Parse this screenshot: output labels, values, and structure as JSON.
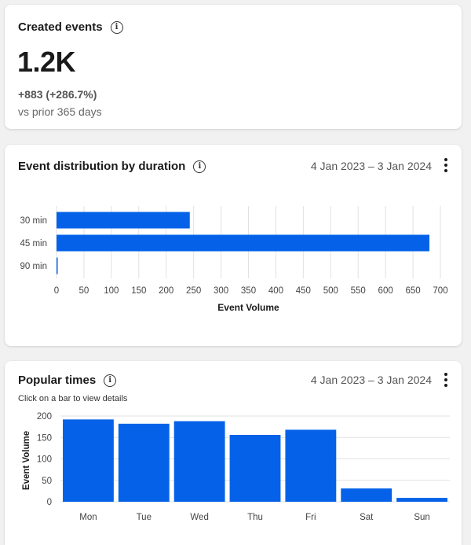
{
  "created": {
    "title": "Created events",
    "value": "1.2K",
    "change": "+883 (+286.7%)",
    "comparison": "vs prior 365 days"
  },
  "duration": {
    "title": "Event distribution by duration",
    "date_range": "4 Jan 2023 – 3 Jan 2024"
  },
  "popular": {
    "title": "Popular times",
    "date_range": "4 Jan 2023 – 3 Jan 2024",
    "subtitle": "Click on a bar to view details"
  },
  "chart_data": [
    {
      "type": "bar",
      "orientation": "horizontal",
      "categories": [
        "30 min",
        "45 min",
        "90 min"
      ],
      "values": [
        243,
        680,
        1
      ],
      "xlabel": "Event Volume",
      "ylabel": "",
      "xlim": [
        0,
        700
      ],
      "xticks": [
        0,
        50,
        100,
        150,
        200,
        250,
        300,
        350,
        400,
        450,
        500,
        550,
        600,
        650,
        700
      ],
      "grid": true,
      "color": "#0562e8"
    },
    {
      "type": "bar",
      "orientation": "vertical",
      "categories": [
        "Mon",
        "Tue",
        "Wed",
        "Thu",
        "Fri",
        "Sat",
        "Sun"
      ],
      "values": [
        192,
        182,
        188,
        156,
        168,
        31,
        9
      ],
      "xlabel": "",
      "ylabel": "Event Volume",
      "ylim": [
        0,
        200
      ],
      "yticks": [
        0,
        50,
        100,
        150,
        200
      ],
      "grid": true,
      "color": "#0562e8"
    }
  ]
}
